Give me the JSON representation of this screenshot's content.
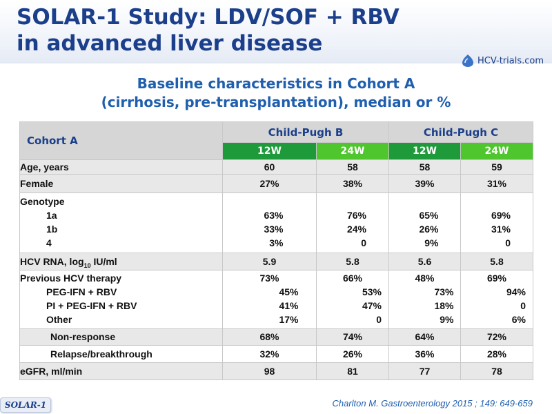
{
  "slide": {
    "title_line1": "SOLAR-1 Study: LDV/SOF + RBV",
    "title_line2": "in advanced liver disease",
    "logo_text": "HCV-trials.com",
    "subtitle_line1": "Baseline characteristics in Cohort A",
    "subtitle_line2": "(cirrhosis, pre-transplantation), median or %",
    "badge": "SOLAR-1",
    "citation": "Charlton M. Gastroenterology 2015 ; 149: 649-659"
  },
  "table": {
    "corner": "Cohort A",
    "group_b": "Child-Pugh B",
    "group_c": "Child-Pugh C",
    "w12": "12W",
    "w24": "24W",
    "age": {
      "label": "Age, years",
      "v": [
        "60",
        "58",
        "58",
        "59"
      ]
    },
    "female": {
      "label": "Female",
      "v": [
        "27%",
        "38%",
        "39%",
        "31%"
      ]
    },
    "genotype": {
      "label": "Genotype",
      "sub": [
        "1a",
        "1b",
        "4"
      ],
      "v": [
        [
          "63%",
          "33%",
          "3%"
        ],
        [
          "76%",
          "24%",
          "0"
        ],
        [
          "65%",
          "26%",
          "9%"
        ],
        [
          "69%",
          "31%",
          "0"
        ]
      ]
    },
    "rna": {
      "label_pre": "HCV RNA, log",
      "label_sub": "10",
      "label_post": " IU/ml",
      "v": [
        "5.9",
        "5.8",
        "5.6",
        "5.8"
      ]
    },
    "prev": {
      "label": "Previous HCV therapy",
      "sub": [
        "PEG-IFN + RBV",
        "PI + PEG-IFN + RBV",
        "Other"
      ],
      "v": [
        [
          "73%",
          "45%",
          "41%",
          "17%"
        ],
        [
          "66%",
          "53%",
          "47%",
          "0"
        ],
        [
          "48%",
          "73%",
          "18%",
          "9%"
        ],
        [
          "69%",
          "94%",
          "0",
          "6%"
        ]
      ]
    },
    "nonresp": {
      "label": "Non-response",
      "v": [
        "68%",
        "74%",
        "64%",
        "72%"
      ]
    },
    "relapse": {
      "label": "Relapse/breakthrough",
      "v": [
        "32%",
        "26%",
        "36%",
        "28%"
      ]
    },
    "egfr": {
      "label": "eGFR, ml/min",
      "v": [
        "98",
        "81",
        "77",
        "78"
      ]
    }
  },
  "colors": {
    "title": "#1b3f8b",
    "subtitle": "#1f5fae",
    "green_dark": "#1e9a3a",
    "green_light": "#4fc52e",
    "header_grey": "#d6d6d6",
    "row_grey": "#e8e8e8"
  }
}
